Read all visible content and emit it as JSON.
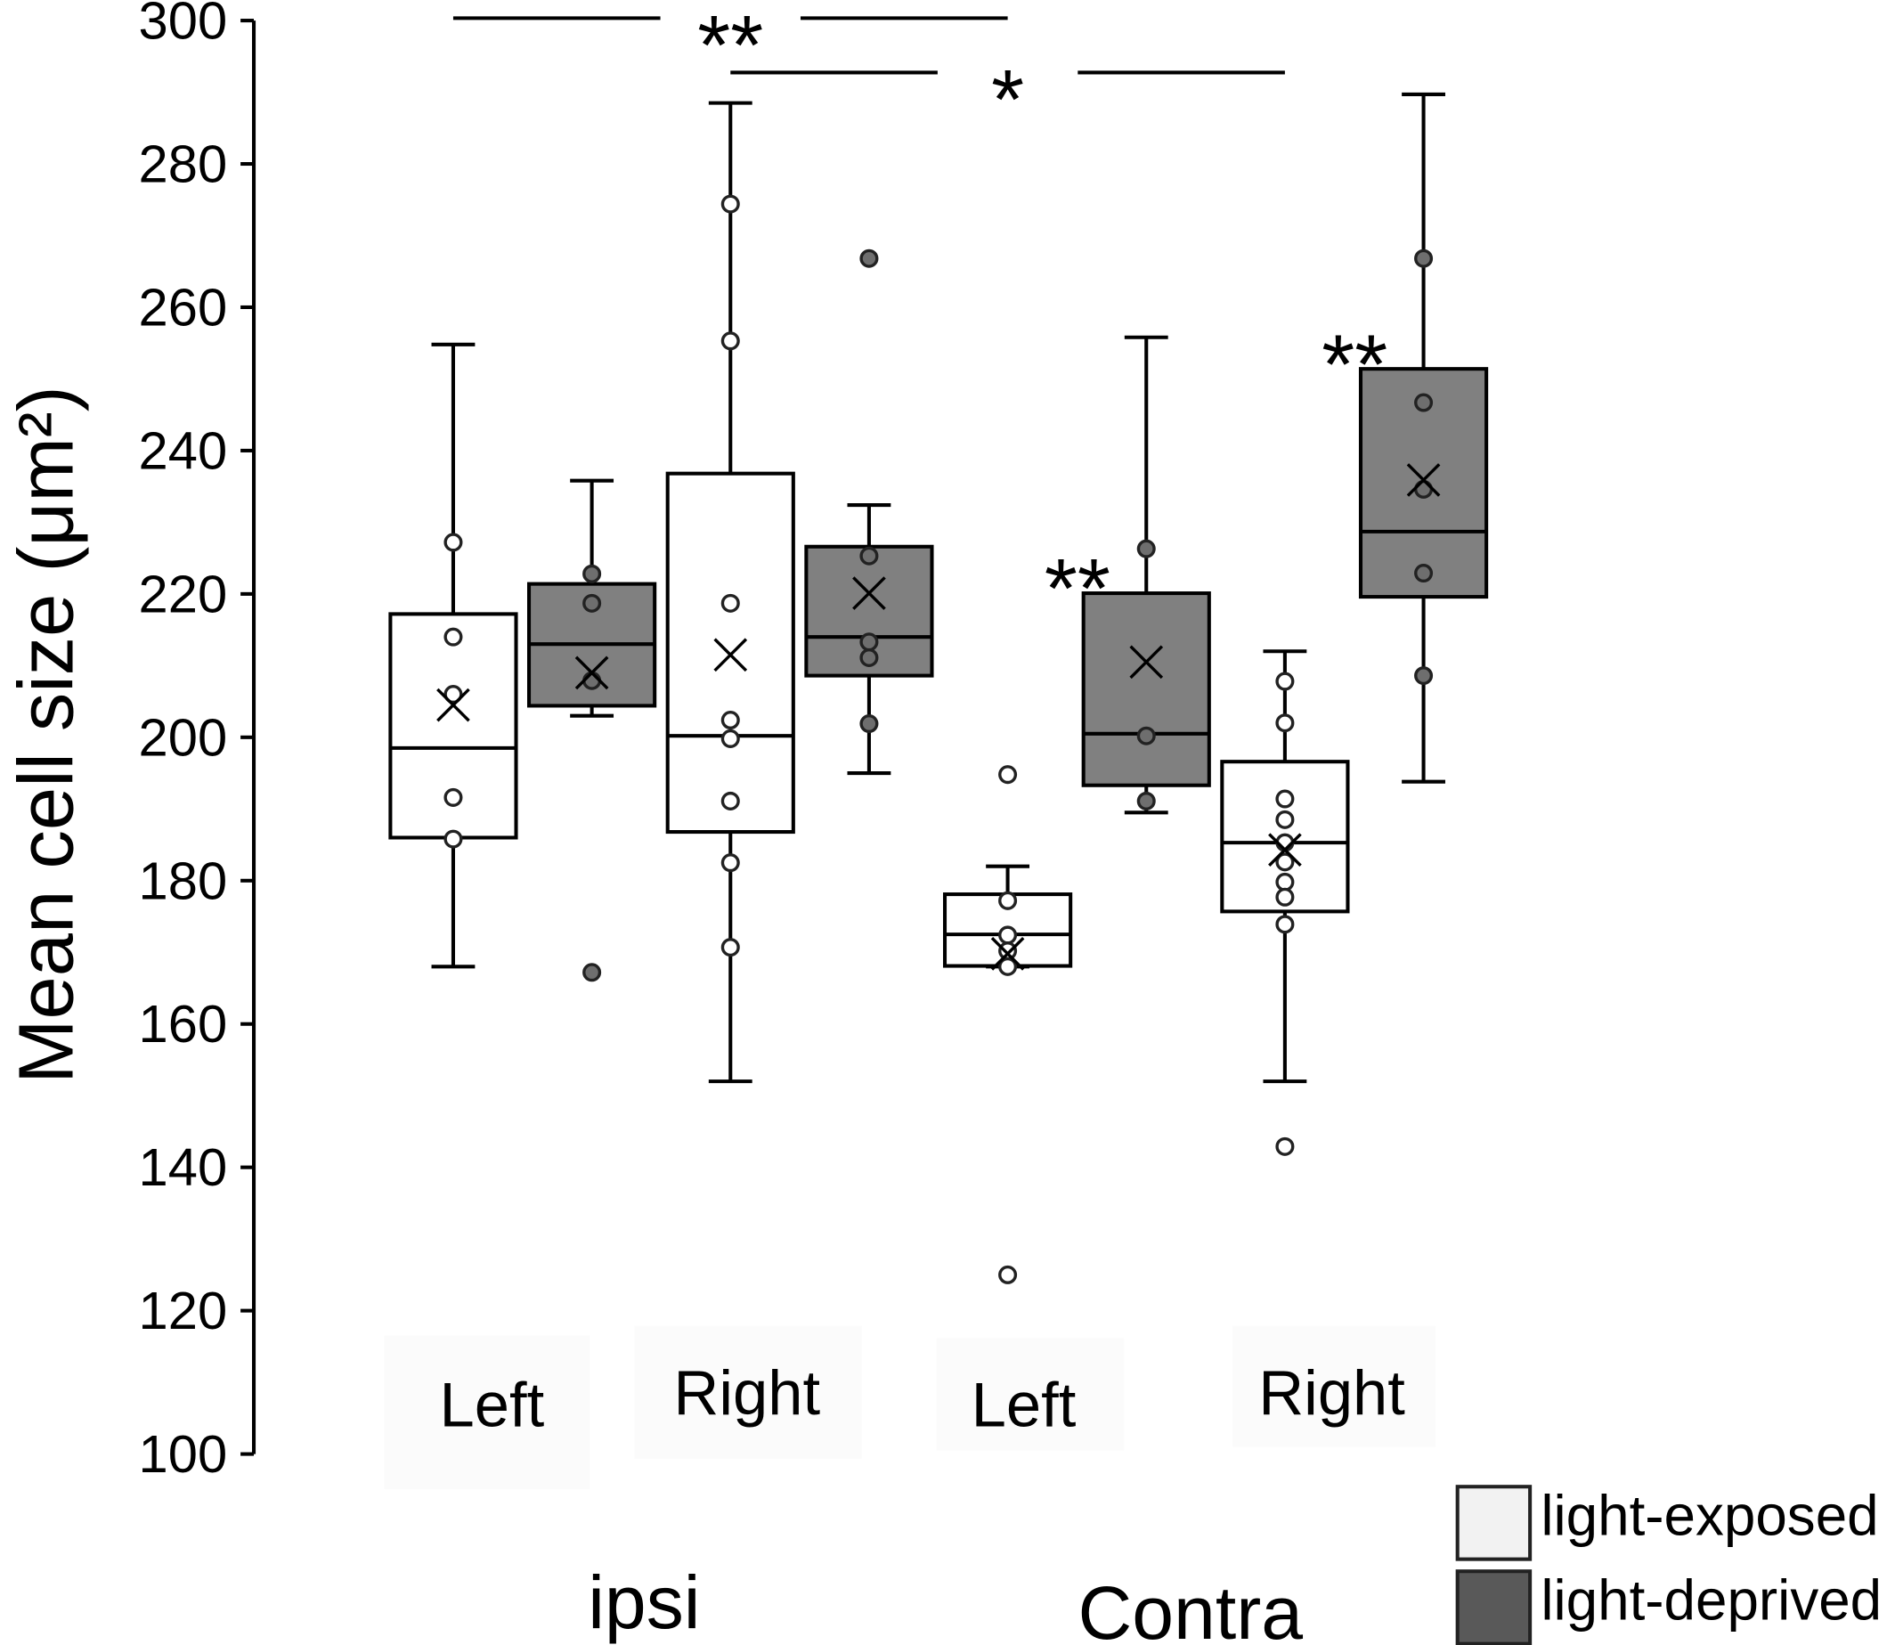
{
  "chart_data": {
    "type": "box",
    "ylabel": "Mean cell size (μm²)",
    "ylim": [
      100,
      300
    ],
    "yticks": [
      100,
      120,
      140,
      160,
      180,
      200,
      220,
      240,
      260,
      280,
      300
    ],
    "grid": false,
    "legend_position": "bottom-right",
    "series": [
      {
        "name": "light-exposed",
        "color": "#f2f2f2",
        "box_fill": "#ffffff",
        "point_fill": "#ffffff"
      },
      {
        "name": "light-deprived",
        "color": "#595959",
        "box_fill": "#808080",
        "point_fill": "#6e6e6e"
      }
    ],
    "groups": [
      {
        "label": "ipsi",
        "categories": [
          {
            "label": "Left",
            "boxes": [
              {
                "series": 0,
                "whisker_low": 168,
                "q1": 186,
                "median": 198.5,
                "q3": 217.2,
                "whisker_high": 254.8,
                "mean": 204.5,
                "points": [
                  227.2,
                  214,
                  206,
                  191.6,
                  185.8
                ],
                "outliers": []
              },
              {
                "series": 1,
                "whisker_low": 203,
                "q1": 204.4,
                "median": 213,
                "q3": 221.4,
                "whisker_high": 235.8,
                "mean": 209,
                "points": [
                  222.8,
                  218.7,
                  207.9
                ],
                "outliers": [
                  167.2
                ]
              }
            ]
          },
          {
            "label": "Right",
            "boxes": [
              {
                "series": 0,
                "whisker_low": 152,
                "q1": 186.8,
                "median": 200.2,
                "q3": 236.8,
                "whisker_high": 288.5,
                "mean": 211.5,
                "points": [
                  274.4,
                  255.3,
                  218.7,
                  202.4,
                  199.8,
                  191.1,
                  182.5,
                  170.7
                ],
                "outliers": []
              },
              {
                "series": 1,
                "whisker_low": 195,
                "q1": 208.6,
                "median": 214,
                "q3": 226.6,
                "whisker_high": 232.4,
                "mean": 220.1,
                "points": [
                  225.3,
                  213.3,
                  211.1,
                  201.9
                ],
                "outliers": [
                  266.8
                ]
              }
            ]
          }
        ]
      },
      {
        "label": "Contra",
        "categories": [
          {
            "label": "Left",
            "boxes": [
              {
                "series": 0,
                "whisker_low": 168,
                "q1": 168.1,
                "median": 172.5,
                "q3": 178.1,
                "whisker_high": 182,
                "mean": 169.8,
                "points": [
                  177.2,
                  172.4,
                  170.2,
                  168
                ],
                "outliers": [
                  194.8,
                  125
                ]
              },
              {
                "series": 1,
                "whisker_low": 189.5,
                "q1": 193.3,
                "median": 200.5,
                "q3": 220.1,
                "whisker_high": 255.8,
                "mean": 210.5,
                "points": [
                  226.3,
                  200.2,
                  191.1
                ],
                "outliers": []
              }
            ]
          },
          {
            "label": "Right",
            "boxes": [
              {
                "series": 0,
                "whisker_low": 152,
                "q1": 175.7,
                "median": 185.3,
                "q3": 196.6,
                "whisker_high": 212,
                "mean": 184.3,
                "points": [
                  207.8,
                  202,
                  191.4,
                  188.5,
                  185.3,
                  182.6,
                  179.8,
                  177.7,
                  173.9
                ],
                "outliers": [
                  142.9
                ]
              },
              {
                "series": 1,
                "whisker_low": 193.8,
                "q1": 219.6,
                "median": 228.7,
                "q3": 251.4,
                "whisker_high": 289.7,
                "mean": 235.9,
                "points": [
                  266.8,
                  246.7,
                  234.6,
                  222.9,
                  208.6
                ],
                "outliers": []
              }
            ]
          }
        ]
      }
    ],
    "significance": [
      {
        "label": "**",
        "between_boxes": [
          0,
          4
        ]
      },
      {
        "label": "*",
        "between_boxes": [
          2,
          6
        ]
      },
      {
        "label": "**",
        "box": 5
      },
      {
        "label": "**",
        "box": 7
      }
    ]
  }
}
